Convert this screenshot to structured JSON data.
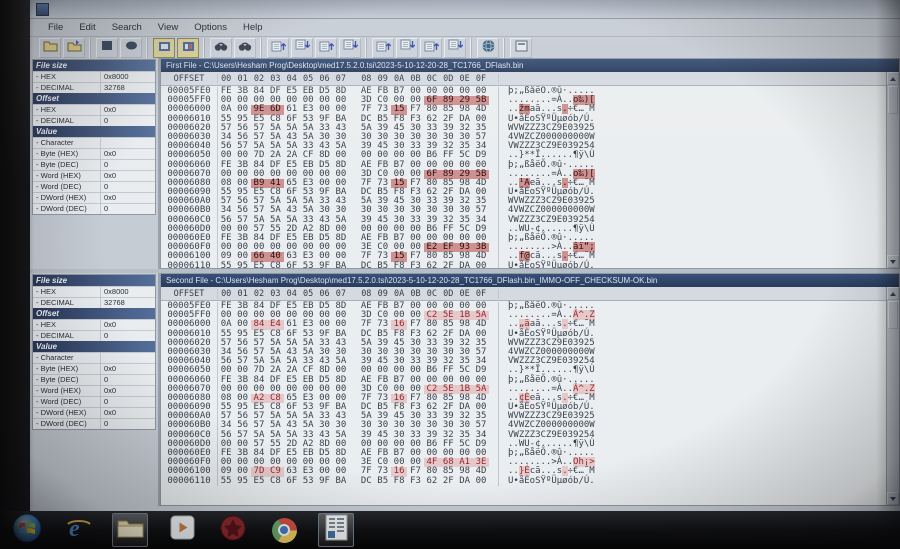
{
  "window": {
    "menu": [
      "File",
      "Edit",
      "Search",
      "View",
      "Options",
      "Help"
    ]
  },
  "toolbar": {
    "groups": [
      [
        "open-file-one",
        "open-file-two"
      ],
      [
        "solid-square",
        "solid-ellipse"
      ],
      [
        "ascii-toggle-one",
        "ascii-toggle-two"
      ],
      [
        "find-previous-binoculars",
        "find-next-binoculars"
      ],
      [
        "goto-first-difference",
        "goto-previous-difference",
        "goto-next-difference",
        "goto-last-difference"
      ],
      [
        "goto-first-block",
        "goto-previous-block",
        "goto-next-block",
        "goto-last-block"
      ],
      [
        "globe"
      ],
      [
        "about-box"
      ]
    ],
    "pressed": [
      "ascii-toggle-one",
      "ascii-toggle-two"
    ]
  },
  "hex_header": {
    "offset_label": "OFFSET",
    "byte_labels": [
      "00",
      "01",
      "02",
      "03",
      "04",
      "05",
      "06",
      "07",
      "08",
      "09",
      "0A",
      "0B",
      "0C",
      "0D",
      "0E",
      "0F"
    ]
  },
  "panes": [
    {
      "title": "First File - C:\\Users\\Hesham Prog\\Desktop\\med17.5.2.0.tsi\\2023-5-10-12-20-28_TC1766_DFlash.bin",
      "sidebar": {
        "sections": [
          {
            "header": "File size",
            "rows": [
              [
                "- HEX",
                "0x8000"
              ],
              [
                "- DECIMAL",
                "32768"
              ]
            ]
          },
          {
            "header": "Offset",
            "rows": [
              [
                "- HEX",
                "0x0"
              ],
              [
                "- DECIMAL",
                "0"
              ]
            ]
          },
          {
            "header": "Value",
            "rows": [
              [
                "- Character",
                ""
              ],
              [
                "- Byte (HEX)",
                "0x0"
              ],
              [
                "- Byte (DEC)",
                "0"
              ],
              [
                "- Word (HEX)",
                "0x0"
              ],
              [
                "- Word (DEC)",
                "0"
              ],
              [
                "- DWord (HEX)",
                "0x0"
              ],
              [
                "- DWord (DEC)",
                "0"
              ]
            ]
          }
        ]
      },
      "rows": [
        {
          "o": "00005FE0",
          "b": "FE 3B 84 DF E5 EB D5 8D AE FB B7 00 00 00 00 00",
          "a": "þ;„ßåëÕ.®û·.....",
          "hl": []
        },
        {
          "o": "00005FF0",
          "b": "00 00 00 00 00 00 00 00 3D C0 00 00 6F 89 29 5B",
          "a": "........=À..o‰)[",
          "hl": [
            12,
            13,
            14,
            15
          ]
        },
        {
          "o": "00006000",
          "b": "0A 00 9E 6D 61 E3 00 00 7F 73 15 F7 80 85 98 4D",
          "a": "..žmaã...s.÷€…˜M",
          "hl": [
            2,
            3,
            10
          ]
        },
        {
          "o": "00006010",
          "b": "55 95 E5 C8 6F 53 9F BA DC B5 F8 F3 62 2F DA 00",
          "a": "U•åÈoSŸºÜµøób/Ú.",
          "hl": []
        },
        {
          "o": "00006020",
          "b": "57 56 57 5A 5A 5A 33 43 5A 39 45 30 33 39 32 35",
          "a": "WVWZZZ3CZ9E03925",
          "hl": []
        },
        {
          "o": "00006030",
          "b": "34 56 57 5A 43 5A 30 30 30 30 30 30 30 30 30 57",
          "a": "4VWZCZ000000000W",
          "hl": []
        },
        {
          "o": "00006040",
          "b": "56 57 5A 5A 5A 33 43 5A 39 45 30 33 39 32 35 34",
          "a": "VWZZZ3CZ9E039254",
          "hl": []
        },
        {
          "o": "00006050",
          "b": "00 00 7D 2A 2A CF 8D 00 00 00 00 00 B6 FF 5C D9",
          "a": "..}**Ï......¶ÿ\\Ù",
          "hl": []
        },
        {
          "o": "00006060",
          "b": "FE 3B 84 DF E5 EB D5 8D AE FB B7 00 00 00 00 00",
          "a": "þ;„ßåëÕ.®û·.....",
          "hl": []
        },
        {
          "o": "00006070",
          "b": "00 00 00 00 00 00 00 00 3D C0 00 00 6F 89 29 5B",
          "a": "........=À..o‰)[",
          "hl": [
            12,
            13,
            14,
            15
          ]
        },
        {
          "o": "00006080",
          "b": "08 00 B9 41 65 E3 00 00 7F 73 15 F7 80 85 98 4D",
          "a": "..¹Aeã...s.÷€…˜M",
          "hl": [
            2,
            3,
            10
          ]
        },
        {
          "o": "00006090",
          "b": "55 95 E5 C8 6F 53 9F BA DC B5 F8 F3 62 2F DA 00",
          "a": "U•åÈoSŸºÜµøób/Ú.",
          "hl": []
        },
        {
          "o": "000060A0",
          "b": "57 56 57 5A 5A 5A 33 43 5A 39 45 30 33 39 32 35",
          "a": "WVWZZZ3CZ9E03925",
          "hl": []
        },
        {
          "o": "000060B0",
          "b": "34 56 57 5A 43 5A 30 30 30 30 30 30 30 30 30 57",
          "a": "4VWZCZ000000000W",
          "hl": []
        },
        {
          "o": "000060C0",
          "b": "56 57 5A 5A 5A 33 43 5A 39 45 30 33 39 32 35 34",
          "a": "VWZZZ3CZ9E039254",
          "hl": []
        },
        {
          "o": "000060D0",
          "b": "00 00 57 55 2D A2 8D 00 00 00 00 00 B6 FF 5C D9",
          "a": "..WU-¢......¶ÿ\\Ù",
          "hl": []
        },
        {
          "o": "000060E0",
          "b": "FE 3B 84 DF E5 EB D5 8D AE FB B7 00 00 00 00 00",
          "a": "þ;„ßåëÕ.®û·.....",
          "hl": []
        },
        {
          "o": "000060F0",
          "b": "00 00 00 00 00 00 00 00 3E C0 00 00 E2 EF 93 3B",
          "a": "........>À..âï“;",
          "hl": [
            12,
            13,
            14,
            15
          ]
        },
        {
          "o": "00006100",
          "b": "09 00 66 40 63 E3 00 00 7F 73 15 F7 80 85 98 4D",
          "a": "..f@cã...s.÷€…˜M",
          "hl": [
            2,
            3,
            10
          ]
        },
        {
          "o": "00006110",
          "b": "55 95 E5 C8 6F 53 9F BA DC B5 F8 F3 62 2F DA 00",
          "a": "U•åÈoSŸºÜµøób/Ú.",
          "hl": []
        }
      ]
    },
    {
      "title": "Second File - C:\\Users\\Hesham Prog\\Desktop\\med17.5.2.0.tsi\\2023-5-10-12-20-28_TC1766_DFlash.bin_IMMO-OFF_CHECKSUM-OK.bin",
      "sidebar": {
        "sections": [
          {
            "header": "File size",
            "rows": [
              [
                "- HEX",
                "0x8000"
              ],
              [
                "- DECIMAL",
                "32768"
              ]
            ]
          },
          {
            "header": "Offset",
            "rows": [
              [
                "- HEX",
                "0x0"
              ],
              [
                "- DECIMAL",
                "0"
              ]
            ]
          },
          {
            "header": "Value",
            "rows": [
              [
                "- Character",
                ""
              ],
              [
                "- Byte (HEX)",
                "0x0"
              ],
              [
                "- Byte (DEC)",
                "0"
              ],
              [
                "- Word (HEX)",
                "0x0"
              ],
              [
                "- Word (DEC)",
                "0"
              ],
              [
                "- DWord (HEX)",
                "0x0"
              ],
              [
                "- DWord (DEC)",
                "0"
              ]
            ]
          }
        ]
      },
      "rows": [
        {
          "o": "00005FE0",
          "b": "FE 3B 84 DF E5 EB D5 8D AE FB B7 00 00 00 00 00",
          "a": "þ;„ßåëÕ.®û·.....",
          "hl": []
        },
        {
          "o": "00005FF0",
          "b": "00 00 00 00 00 00 00 00 3D C0 00 00 C2 5E 1B 5A",
          "a": "........=À..Â^.Z",
          "hl": [
            12,
            13,
            14,
            15
          ]
        },
        {
          "o": "00006000",
          "b": "0A 00 84 E4 61 E3 00 00 7F 73 16 F7 80 85 98 4D",
          "a": "..„äaã...s.÷€…˜M",
          "hl": [
            2,
            3,
            10
          ]
        },
        {
          "o": "00006010",
          "b": "55 95 E5 C8 6F 53 9F BA DC B5 F8 F3 62 2F DA 00",
          "a": "U•åÈoSŸºÜµøób/Ú.",
          "hl": []
        },
        {
          "o": "00006020",
          "b": "57 56 57 5A 5A 5A 33 43 5A 39 45 30 33 39 32 35",
          "a": "WVWZZZ3CZ9E03925",
          "hl": []
        },
        {
          "o": "00006030",
          "b": "34 56 57 5A 43 5A 30 30 30 30 30 30 30 30 30 57",
          "a": "4VWZCZ000000000W",
          "hl": []
        },
        {
          "o": "00006040",
          "b": "56 57 5A 5A 5A 33 43 5A 39 45 30 33 39 32 35 34",
          "a": "VWZZZ3CZ9E039254",
          "hl": []
        },
        {
          "o": "00006050",
          "b": "00 00 7D 2A 2A CF 8D 00 00 00 00 00 B6 FF 5C D9",
          "a": "..}**Ï......¶ÿ\\Ù",
          "hl": []
        },
        {
          "o": "00006060",
          "b": "FE 3B 84 DF E5 EB D5 8D AE FB B7 00 00 00 00 00",
          "a": "þ;„ßåëÕ.®û·.....",
          "hl": []
        },
        {
          "o": "00006070",
          "b": "00 00 00 00 00 00 00 00 3D C0 00 00 C2 5E 1B 5A",
          "a": "........=À..Â^.Z",
          "hl": [
            12,
            13,
            14,
            15
          ]
        },
        {
          "o": "00006080",
          "b": "08 00 A2 C8 65 E3 00 00 7F 73 16 F7 80 85 98 4D",
          "a": "..¢Èeã...s.÷€…˜M",
          "hl": [
            2,
            3,
            10
          ]
        },
        {
          "o": "00006090",
          "b": "55 95 E5 C8 6F 53 9F BA DC B5 F8 F3 62 2F DA 00",
          "a": "U•åÈoSŸºÜµøób/Ú.",
          "hl": []
        },
        {
          "o": "000060A0",
          "b": "57 56 57 5A 5A 5A 33 43 5A 39 45 30 33 39 32 35",
          "a": "WVWZZZ3CZ9E03925",
          "hl": []
        },
        {
          "o": "000060B0",
          "b": "34 56 57 5A 43 5A 30 30 30 30 30 30 30 30 30 57",
          "a": "4VWZCZ000000000W",
          "hl": []
        },
        {
          "o": "000060C0",
          "b": "56 57 5A 5A 5A 33 43 5A 39 45 30 33 39 32 35 34",
          "a": "VWZZZ3CZ9E039254",
          "hl": []
        },
        {
          "o": "000060D0",
          "b": "00 00 57 55 2D A2 8D 00 00 00 00 00 B6 FF 5C D9",
          "a": "..WU-¢......¶ÿ\\Ù",
          "hl": []
        },
        {
          "o": "000060E0",
          "b": "FE 3B 84 DF E5 EB D5 8D AE FB B7 00 00 00 00 00",
          "a": "þ;„ßåëÕ.®û·.....",
          "hl": []
        },
        {
          "o": "000060F0",
          "b": "00 00 00 00 00 00 00 00 3E C0 00 00 4F 68 A1 3E",
          "a": "........>À..Oh¡>",
          "hl": [
            12,
            13,
            14,
            15
          ]
        },
        {
          "o": "00006100",
          "b": "09 00 7D C9 63 E3 00 00 7F 73 16 F7 80 85 98 4D",
          "a": "..}Écã...s.÷€…˜M",
          "hl": [
            2,
            3,
            10
          ]
        },
        {
          "o": "00006110",
          "b": "55 95 E5 C8 6F 53 9F BA DC B5 F8 F3 62 2F DA 00",
          "a": "U•åÈoSŸºÜµøób/Ú.",
          "hl": []
        }
      ]
    }
  ],
  "taskbar": {
    "items": [
      {
        "icon": "windows-start",
        "active": false
      },
      {
        "icon": "internet-explorer",
        "active": false
      },
      {
        "icon": "file-explorer",
        "active": true
      },
      {
        "icon": "media-player",
        "active": false
      },
      {
        "icon": "red-utility",
        "active": false
      },
      {
        "icon": "chrome",
        "active": false
      },
      {
        "icon": "hex-editor-window",
        "active": true
      }
    ]
  },
  "colors": {
    "diff_highlight_first": "#d88f8f",
    "diff_highlight_second": "#eec9cc",
    "panel_title_bar": "#2b466f",
    "sidebar_header": "#25355c",
    "window_chrome": "#c7ced8"
  }
}
